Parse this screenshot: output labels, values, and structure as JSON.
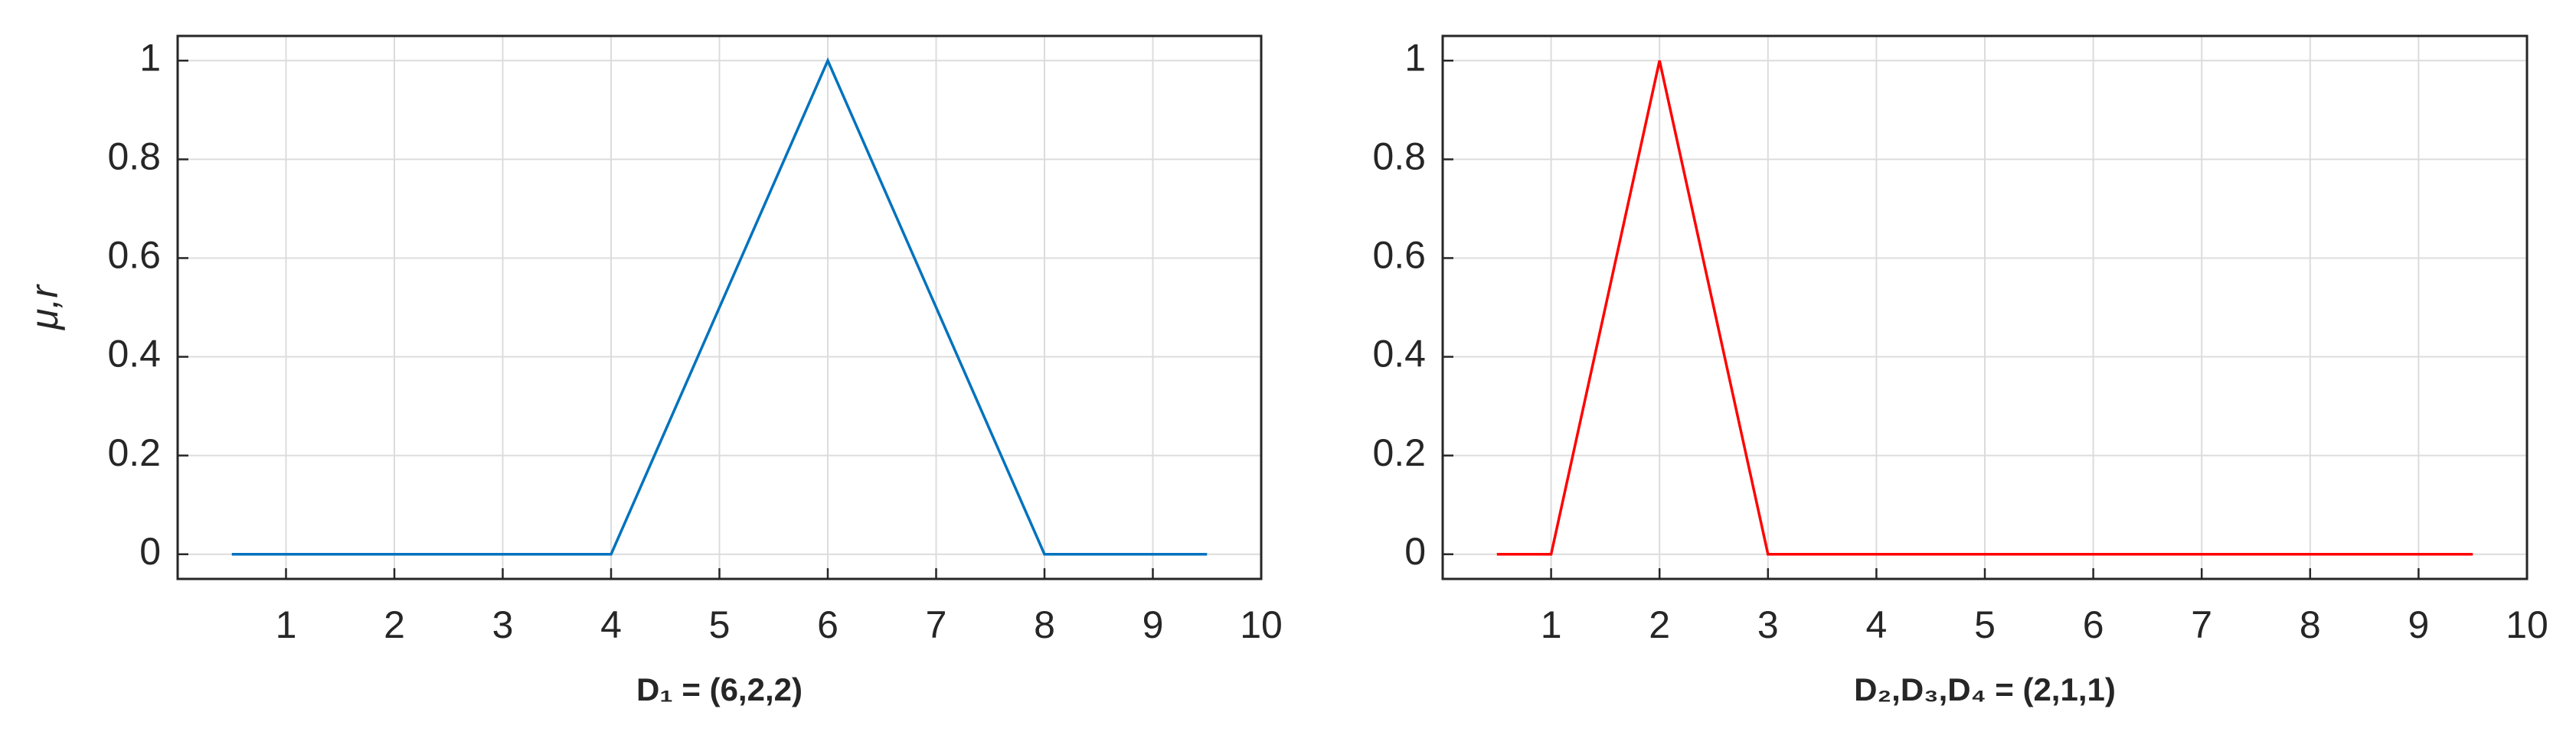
{
  "chart_data": [
    {
      "type": "line",
      "xlabel": "D₁ = (6,2,2)",
      "ylabel": "μ,r",
      "x": [
        0.5,
        4,
        6,
        8,
        9.5
      ],
      "series": [
        {
          "color": "#0072bd",
          "values": [
            0,
            0,
            1,
            0,
            0
          ]
        }
      ],
      "xlim": [
        0,
        10
      ],
      "xticks": [
        1,
        2,
        3,
        4,
        5,
        6,
        7,
        8,
        9,
        10
      ],
      "ylim": [
        -0.05,
        1.05
      ],
      "yticks": [
        0,
        0.2,
        0.4,
        0.6,
        0.8,
        1
      ],
      "grid": true
    },
    {
      "type": "line",
      "xlabel": "D₂,D₃,D₄ = (2,1,1)",
      "x": [
        0.5,
        1,
        2,
        3,
        9.5
      ],
      "series": [
        {
          "color": "#ff0000",
          "values": [
            0,
            0,
            1,
            0,
            0
          ]
        }
      ],
      "xlim": [
        0,
        10
      ],
      "xticks": [
        1,
        2,
        3,
        4,
        5,
        6,
        7,
        8,
        9,
        10
      ],
      "ylim": [
        -0.05,
        1.05
      ],
      "yticks": [
        0,
        0.2,
        0.4,
        0.6,
        0.8,
        1
      ],
      "grid": true
    }
  ]
}
